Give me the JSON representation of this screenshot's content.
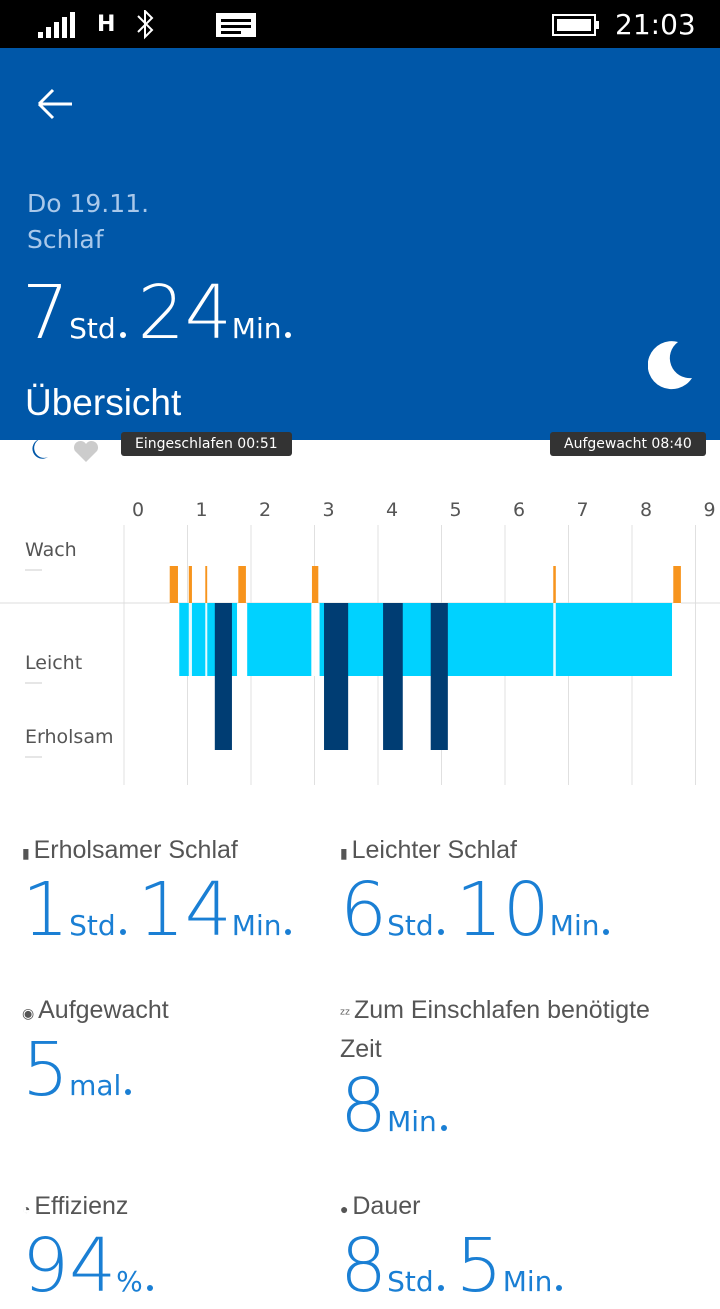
{
  "status_bar": {
    "network": "H",
    "time": "21:03"
  },
  "header": {
    "date": "Do 19.11.",
    "title": "Schlaf",
    "duration": [
      {
        "number": "7",
        "unit": "Std"
      },
      {
        "number": "24",
        "unit": "Min"
      }
    ],
    "tab": "Übersicht"
  },
  "markers": {
    "asleep": "Eingeschlafen 00:51",
    "awake": "Aufgewacht 08:40"
  },
  "chart_data": {
    "type": "sleep-stages",
    "xlim": [
      0,
      9
    ],
    "xticks": [
      0,
      1,
      2,
      3,
      4,
      5,
      6,
      7,
      8,
      9
    ],
    "series": [
      {
        "name": "Wach",
        "color": "#f7941d",
        "start": [
          0.72,
          1.02,
          1.28,
          1.8,
          2.96,
          6.76,
          8.65
        ],
        "end": [
          0.85,
          1.07,
          1.31,
          1.92,
          3.06,
          6.8,
          8.77
        ]
      },
      {
        "name": "Leicht",
        "color": "#00d2ff",
        "start": [
          0.87,
          1.94,
          3.08
        ],
        "end": [
          1.78,
          2.95,
          8.63
        ]
      },
      {
        "name": "Erholsam",
        "color": "#003d73",
        "start": [
          1.43,
          3.15,
          4.08,
          4.83
        ],
        "end": [
          1.7,
          3.53,
          4.39,
          5.1
        ]
      }
    ]
  },
  "stats": [
    {
      "label": "Erholsamer Schlaf",
      "value": [
        {
          "number": "1",
          "unit": "Std"
        },
        {
          "number": "14",
          "unit": "Min"
        }
      ]
    },
    {
      "label": "Leichter Schlaf",
      "value": [
        {
          "number": "6",
          "unit": "Std"
        },
        {
          "number": "10",
          "unit": "Min"
        }
      ]
    },
    {
      "label": "Aufgewacht",
      "value": [
        {
          "number": "5",
          "unit": "mal"
        }
      ]
    },
    {
      "label": "Zum Einschlafen benötigte Zeit",
      "value": [
        {
          "number": "8",
          "unit": "Min"
        }
      ]
    },
    {
      "label": "Effizienz",
      "value": [
        {
          "number": "94",
          "unit": "%"
        }
      ]
    },
    {
      "label": "Dauer",
      "value": [
        {
          "number": "8",
          "unit": "Std"
        },
        {
          "number": "5",
          "unit": "Min"
        }
      ]
    }
  ]
}
